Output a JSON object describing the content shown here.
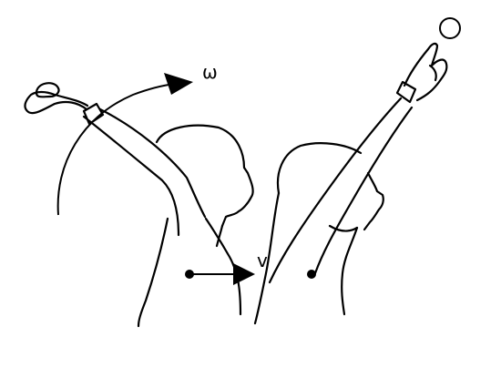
{
  "labels": {
    "omega": "ω",
    "velocity": "v"
  },
  "colors": {
    "ink": "#000000",
    "paper": "#ffffff"
  }
}
